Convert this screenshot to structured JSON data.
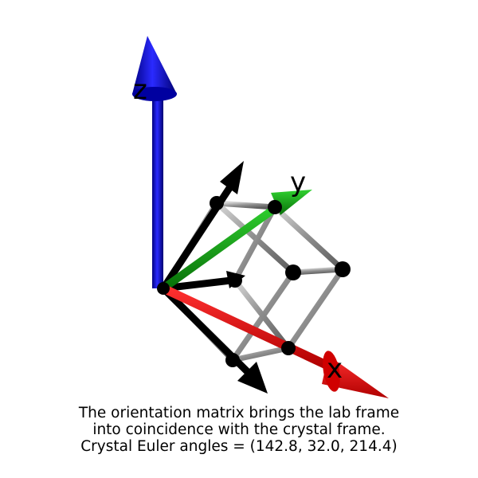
{
  "axes": {
    "x": {
      "label": "x",
      "color": "#e00000"
    },
    "y": {
      "label": "y",
      "color": "#10b010"
    },
    "z": {
      "label": "z",
      "color": "#0000e0"
    }
  },
  "crystal_frame_color": "#000000",
  "lattice_color": "#8a8a8a",
  "caption": {
    "line1": "The orientation matrix brings the lab frame",
    "line2": "into coincidence with the crystal frame.",
    "line3": "Crystal Euler angles = (142.8, 32.0, 214.4)"
  }
}
